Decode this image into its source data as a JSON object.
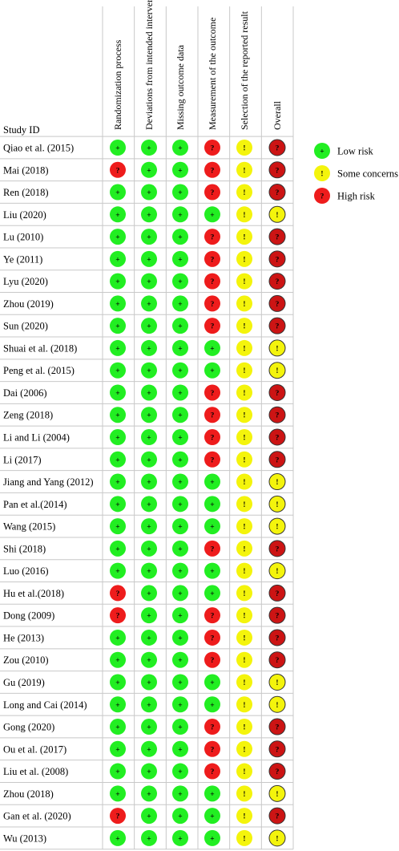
{
  "chart_data": {
    "type": "table",
    "row_header": "Study ID",
    "columns": [
      "Randomization process",
      "Deviations from intended interver",
      "Missing outcome data",
      "Measurement of the outcome",
      "Selection of the reported result",
      "Overall"
    ],
    "judgement_symbols": {
      "low": "+",
      "some": "!",
      "high": "?"
    },
    "judgement_colors": {
      "low": "#22ee22",
      "some": "#f4f40c",
      "high": "#ee1c1c"
    },
    "overall_symbols": {
      "low": "+",
      "some": "!",
      "high": "?"
    },
    "overall_colors": {
      "low": "#22ee22",
      "some": "#f4f40c",
      "high": "#cc1414"
    },
    "grid_color": "#c8c8c8",
    "studies": [
      {
        "id": "Qiao et al. (2015)",
        "judgements": [
          "low",
          "low",
          "low",
          "high",
          "some",
          "high"
        ]
      },
      {
        "id": "Mai (2018)",
        "judgements": [
          "high",
          "low",
          "low",
          "high",
          "some",
          "high"
        ]
      },
      {
        "id": "Ren (2018)",
        "judgements": [
          "low",
          "low",
          "low",
          "high",
          "some",
          "high"
        ]
      },
      {
        "id": "Liu (2020)",
        "judgements": [
          "low",
          "low",
          "low",
          "low",
          "some",
          "some"
        ]
      },
      {
        "id": "Lu (2010)",
        "judgements": [
          "low",
          "low",
          "low",
          "high",
          "some",
          "high"
        ]
      },
      {
        "id": "Ye (2011)",
        "judgements": [
          "low",
          "low",
          "low",
          "high",
          "some",
          "high"
        ]
      },
      {
        "id": "Lyu (2020)",
        "judgements": [
          "low",
          "low",
          "low",
          "high",
          "some",
          "high"
        ]
      },
      {
        "id": "Zhou (2019)",
        "judgements": [
          "low",
          "low",
          "low",
          "high",
          "some",
          "high"
        ]
      },
      {
        "id": "Sun (2020)",
        "judgements": [
          "low",
          "low",
          "low",
          "high",
          "some",
          "high"
        ]
      },
      {
        "id": "Shuai et al. (2018)",
        "judgements": [
          "low",
          "low",
          "low",
          "low",
          "some",
          "some"
        ]
      },
      {
        "id": "Peng et al. (2015)",
        "judgements": [
          "low",
          "low",
          "low",
          "low",
          "some",
          "some"
        ]
      },
      {
        "id": "Dai (2006)",
        "judgements": [
          "low",
          "low",
          "low",
          "high",
          "some",
          "high"
        ]
      },
      {
        "id": "Zeng (2018)",
        "judgements": [
          "low",
          "low",
          "low",
          "high",
          "some",
          "high"
        ]
      },
      {
        "id": "Li and Li (2004)",
        "judgements": [
          "low",
          "low",
          "low",
          "high",
          "some",
          "high"
        ]
      },
      {
        "id": "Li (2017)",
        "judgements": [
          "low",
          "low",
          "low",
          "high",
          "some",
          "high"
        ]
      },
      {
        "id": "Jiang and Yang (2012)",
        "judgements": [
          "low",
          "low",
          "low",
          "low",
          "some",
          "some"
        ]
      },
      {
        "id": "Pan et al.(2014)",
        "judgements": [
          "low",
          "low",
          "low",
          "low",
          "some",
          "some"
        ]
      },
      {
        "id": "Wang (2015)",
        "judgements": [
          "low",
          "low",
          "low",
          "low",
          "some",
          "some"
        ]
      },
      {
        "id": "Shi (2018)",
        "judgements": [
          "low",
          "low",
          "low",
          "high",
          "some",
          "high"
        ]
      },
      {
        "id": "Luo (2016)",
        "judgements": [
          "low",
          "low",
          "low",
          "low",
          "some",
          "some"
        ]
      },
      {
        "id": "Hu et al.(2018)",
        "judgements": [
          "high",
          "low",
          "low",
          "low",
          "some",
          "high"
        ]
      },
      {
        "id": "Dong (2009)",
        "judgements": [
          "high",
          "low",
          "low",
          "high",
          "some",
          "high"
        ]
      },
      {
        "id": "He (2013)",
        "judgements": [
          "low",
          "low",
          "low",
          "high",
          "some",
          "high"
        ]
      },
      {
        "id": "Zou (2010)",
        "judgements": [
          "low",
          "low",
          "low",
          "high",
          "some",
          "high"
        ]
      },
      {
        "id": "Gu (2019)",
        "judgements": [
          "low",
          "low",
          "low",
          "low",
          "some",
          "some"
        ]
      },
      {
        "id": "Long and Cai (2014)",
        "judgements": [
          "low",
          "low",
          "low",
          "low",
          "some",
          "some"
        ]
      },
      {
        "id": "Gong (2020)",
        "judgements": [
          "low",
          "low",
          "low",
          "high",
          "some",
          "high"
        ]
      },
      {
        "id": "Ou et al. (2017)",
        "judgements": [
          "low",
          "low",
          "low",
          "high",
          "some",
          "high"
        ]
      },
      {
        "id": "Liu et al. (2008)",
        "judgements": [
          "low",
          "low",
          "low",
          "high",
          "some",
          "high"
        ]
      },
      {
        "id": "Zhou (2018)",
        "judgements": [
          "low",
          "low",
          "low",
          "low",
          "some",
          "some"
        ]
      },
      {
        "id": "Gan et al. (2020)",
        "judgements": [
          "high",
          "low",
          "low",
          "low",
          "some",
          "high"
        ]
      },
      {
        "id": "Wu (2013)",
        "judgements": [
          "low",
          "low",
          "low",
          "low",
          "some",
          "some"
        ]
      }
    ],
    "legend": [
      {
        "label": "Low risk",
        "judgement": "low"
      },
      {
        "label": "Some concerns",
        "judgement": "some"
      },
      {
        "label": "High risk",
        "judgement": "high"
      }
    ],
    "legend_placement": "right"
  }
}
